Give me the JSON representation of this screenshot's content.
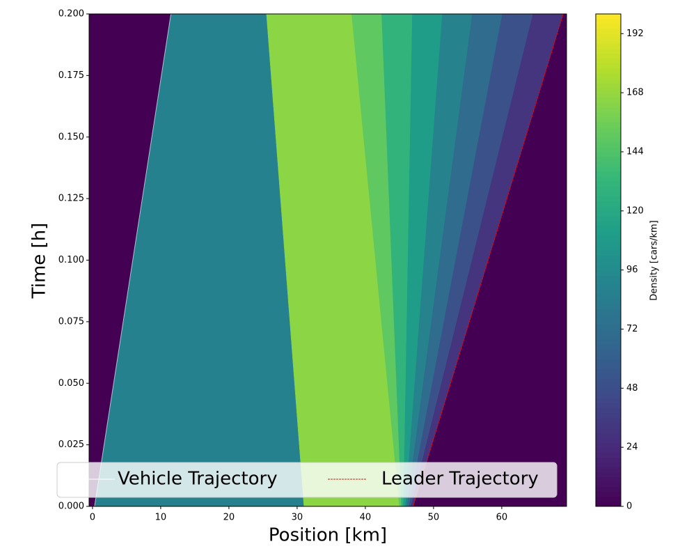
{
  "chart_data": {
    "type": "heatmap",
    "xlabel": "Position [km]",
    "ylabel": "Time [h]",
    "xlim": [
      -0.5,
      69.5
    ],
    "ylim": [
      0,
      0.2
    ],
    "xticks": [
      0,
      10,
      20,
      30,
      40,
      50,
      60
    ],
    "yticks": [
      {
        "value": 0,
        "label": "0.000"
      },
      {
        "value": 0.025,
        "label": "0.025"
      },
      {
        "value": 0.05,
        "label": "0.050"
      },
      {
        "value": 0.075,
        "label": "0.075"
      },
      {
        "value": 0.1,
        "label": "0.100"
      },
      {
        "value": 0.125,
        "label": "0.125"
      },
      {
        "value": 0.15,
        "label": "0.150"
      },
      {
        "value": 0.175,
        "label": "0.175"
      },
      {
        "value": 0.2,
        "label": "0.200"
      }
    ],
    "colormap": "viridis",
    "colorbar": {
      "label": "Density [cars/km]",
      "clim": [
        0,
        200
      ],
      "ticks": [
        0,
        24,
        48,
        72,
        96,
        120,
        144,
        168,
        192
      ]
    },
    "regions": [
      {
        "density": 0,
        "x": [
          -0.5,
          69.5,
          69.5,
          -0.5
        ],
        "y": [
          0,
          0,
          0.2,
          0.2
        ]
      },
      {
        "density": 88,
        "x": [
          0.3,
          31,
          25.5,
          11.5
        ],
        "y": [
          0,
          0,
          0.2,
          0.2
        ]
      },
      {
        "density": 165,
        "x": [
          31,
          45,
          38,
          25.5
        ],
        "y": [
          0,
          0,
          0.2,
          0.2
        ]
      },
      {
        "density": 150,
        "x": [
          45,
          45.3,
          42.4,
          38
        ],
        "y": [
          0,
          0,
          0.2,
          0.2
        ]
      },
      {
        "density": 130,
        "x": [
          45.3,
          45.6,
          46.9,
          42.4
        ],
        "y": [
          0,
          0,
          0.2,
          0.2
        ]
      },
      {
        "density": 110,
        "x": [
          45.6,
          45.9,
          51.3,
          46.9
        ],
        "y": [
          0,
          0,
          0.2,
          0.2
        ]
      },
      {
        "density": 90,
        "x": [
          45.9,
          46.1,
          55.7,
          51.3
        ],
        "y": [
          0,
          0,
          0.2,
          0.2
        ]
      },
      {
        "density": 70,
        "x": [
          46.1,
          46.4,
          60.1,
          55.7
        ],
        "y": [
          0,
          0,
          0.2,
          0.2
        ]
      },
      {
        "density": 50,
        "x": [
          46.4,
          46.7,
          64.6,
          60.1
        ],
        "y": [
          0,
          0,
          0.2,
          0.2
        ]
      },
      {
        "density": 30,
        "x": [
          46.7,
          47,
          69,
          64.6
        ],
        "y": [
          0,
          0,
          0.2,
          0.2
        ]
      }
    ],
    "series": [
      {
        "name": "Vehicle Trajectory",
        "color": "#ffffff",
        "x": [
          0.3,
          11.5
        ],
        "y": [
          0,
          0.2
        ]
      },
      {
        "name": "Leader Trajectory",
        "color": "#ff0000",
        "x": [
          47,
          69
        ],
        "y": [
          0,
          0.2
        ]
      }
    ],
    "legend": "lower center"
  }
}
